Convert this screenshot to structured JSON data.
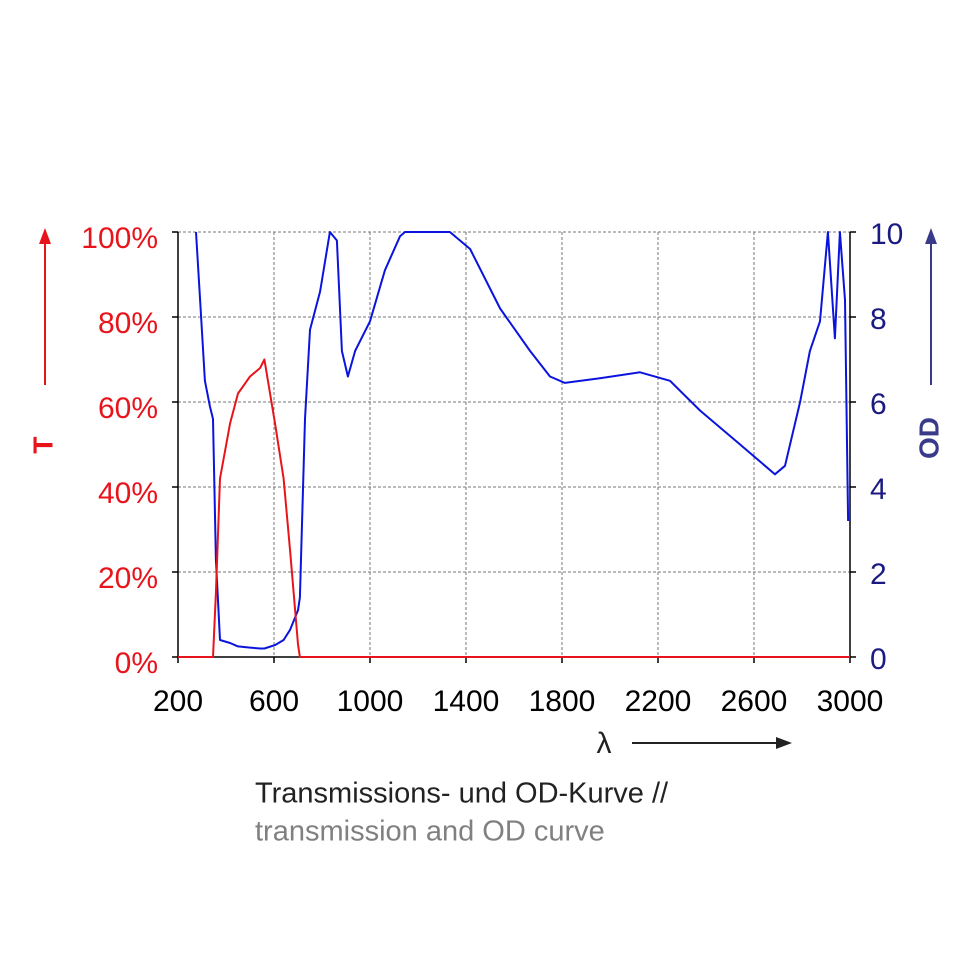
{
  "chart_data": {
    "type": "line",
    "x_label": "λ",
    "caption": "Transmissions- und OD-Kurve //",
    "caption_sub": "transmission and OD curve",
    "y_label": "T",
    "y2_label": "OD",
    "x": [
      200,
      275,
      292,
      312,
      333,
      346,
      358,
      375,
      417,
      450,
      500,
      542,
      560,
      604,
      640,
      667,
      700,
      708,
      729,
      750,
      792,
      833,
      862,
      883,
      908,
      938,
      1000,
      1062,
      1125,
      1146,
      1333,
      1417,
      1542,
      1667,
      1750,
      1812,
      1958,
      2125,
      2250,
      2375,
      2542,
      2687,
      2729,
      2792,
      2833,
      2875,
      2908,
      2937,
      2958,
      2979,
      2992,
      3000
    ],
    "series": [
      {
        "name": "T",
        "color": "#e8141c",
        "values": [
          0,
          0,
          0,
          0,
          0,
          0,
          15,
          42,
          55,
          62,
          66,
          68,
          70,
          55,
          42,
          25,
          3,
          0,
          0,
          0,
          0,
          0,
          0,
          0,
          0,
          0,
          0,
          0,
          0,
          0,
          0,
          0,
          0,
          0,
          0,
          0,
          0,
          0,
          0,
          0,
          0,
          0,
          0,
          0,
          0,
          0,
          0,
          0,
          0,
          0,
          0,
          0
        ]
      },
      {
        "name": "OD",
        "color": "#0a14dc",
        "axis": "y2",
        "values": [
          null,
          10,
          8.4,
          6.5,
          5.9,
          5.6,
          2.3,
          0.4,
          0.33,
          0.25,
          0.22,
          0.2,
          0.2,
          0.28,
          0.4,
          0.64,
          1.1,
          1.4,
          5.6,
          7.7,
          8.6,
          10,
          9.8,
          7.2,
          6.6,
          7.2,
          7.9,
          9.1,
          9.9,
          10,
          10,
          9.6,
          8.2,
          7.2,
          6.6,
          6.45,
          6.56,
          6.7,
          6.5,
          5.8,
          5.0,
          4.3,
          4.5,
          6.0,
          7.2,
          7.9,
          10,
          7.5,
          10,
          8.4,
          3.2,
          null
        ]
      }
    ],
    "xlim": [
      200,
      3000
    ],
    "xticks": [
      200,
      600,
      1000,
      1400,
      1800,
      2200,
      2600,
      3000
    ],
    "ylim": [
      0,
      100
    ],
    "yticks": [
      {
        "value": 0,
        "label": "0%"
      },
      {
        "value": 20,
        "label": "20%"
      },
      {
        "value": 40,
        "label": "40%"
      },
      {
        "value": 60,
        "label": "60%"
      },
      {
        "value": 80,
        "label": "80%"
      },
      {
        "value": 100,
        "label": "100%"
      }
    ],
    "y2lim": [
      0,
      10
    ],
    "y2ticks": [
      0,
      2,
      4,
      6,
      8,
      10
    ],
    "grid": true,
    "y_color": "#e8141c",
    "y2_color": "#1a1a80"
  }
}
